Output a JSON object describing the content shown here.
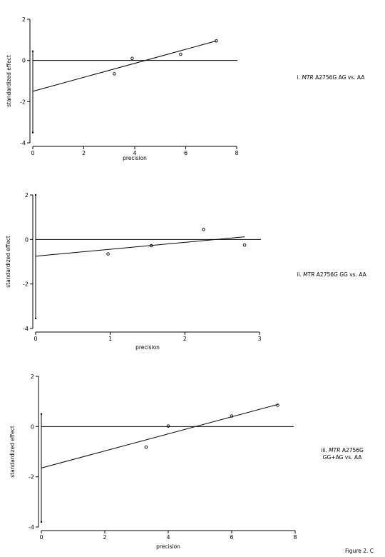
{
  "figure_label": "Figure 2. C",
  "panels": [
    {
      "numeral": "i.",
      "gene": "MTR",
      "rest": "A2756G AG vs. AA",
      "line2": ""
    },
    {
      "numeral": "ii.",
      "gene": "MTR",
      "rest": "A2756G GG vs. AA",
      "line2": ""
    },
    {
      "numeral": "iii.",
      "gene": "MTR",
      "rest": "A2756G",
      "line2": "GG+AG vs. AA"
    }
  ],
  "chart_data": [
    {
      "type": "scatter",
      "xlabel": "precision",
      "ylabel": "standardized effect",
      "xlim": [
        0,
        8
      ],
      "ylim": [
        -4,
        2
      ],
      "xticks": [
        "0",
        "2",
        "4",
        "6",
        "8"
      ],
      "yticks": [
        "2",
        "0",
        "-2",
        "-4"
      ],
      "points": {
        "x": [
          3.2,
          3.9,
          5.8,
          7.2
        ],
        "y": [
          -0.65,
          0.1,
          0.3,
          0.95
        ]
      },
      "regression_line": {
        "x": [
          0,
          7.2
        ],
        "y": [
          -1.5,
          0.95
        ]
      },
      "reference_line_y": 0,
      "ci_at_origin": {
        "low": -3.5,
        "high": 0.45
      }
    },
    {
      "type": "scatter",
      "xlabel": "precision",
      "ylabel": "standardized effect",
      "xlim": [
        0,
        3
      ],
      "ylim": [
        -4,
        2
      ],
      "xticks": [
        "0",
        "1",
        "2",
        "3"
      ],
      "yticks": [
        "2",
        "0",
        "-2",
        "-4"
      ],
      "points": {
        "x": [
          0.97,
          1.55,
          2.25,
          2.8
        ],
        "y": [
          -0.65,
          -0.28,
          0.45,
          -0.25
        ]
      },
      "regression_line": {
        "x": [
          0,
          2.8
        ],
        "y": [
          -0.75,
          0.12
        ]
      },
      "reference_line_y": 0,
      "ci_at_origin": {
        "low": -3.55,
        "high": 2.0
      }
    },
    {
      "type": "scatter",
      "xlabel": "precision",
      "ylabel": "standardized effect",
      "xlim": [
        0,
        8
      ],
      "ylim": [
        -4,
        2
      ],
      "xticks": [
        "0",
        "2",
        "4",
        "6",
        "8"
      ],
      "yticks": [
        "2",
        "0",
        "-2",
        "-4"
      ],
      "points": {
        "x": [
          3.3,
          4.0,
          6.0,
          7.45
        ],
        "y": [
          -0.82,
          0.02,
          0.42,
          0.85
        ]
      },
      "regression_line": {
        "x": [
          0,
          7.45
        ],
        "y": [
          -1.65,
          0.88
        ]
      },
      "reference_line_y": 0,
      "ci_at_origin": {
        "low": -3.8,
        "high": 0.5
      }
    }
  ]
}
